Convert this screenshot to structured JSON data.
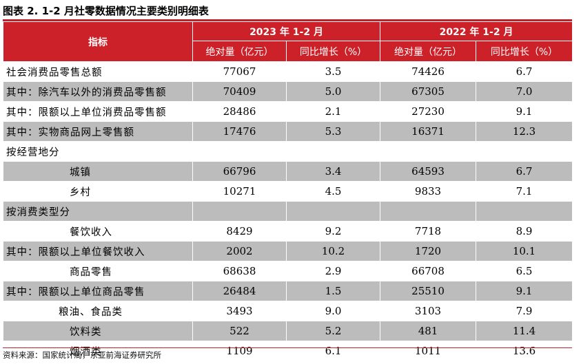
{
  "title": "图表 2.   1-2 月社零数据情况主要类别明细表",
  "header": {
    "indicator": "指标",
    "period_2023": "2023 年 1-2 月",
    "period_2022": "2022 年 1-2 月",
    "abs_2023": "绝对量（亿元）",
    "yoy_2023": "同比增长（%）",
    "abs_2022": "绝对量（亿元）",
    "yoy_2022": "同比增长（%）"
  },
  "rows": [
    {
      "label": "社会消费品零售总额",
      "a23": "77067",
      "y23": "3.5",
      "a22": "74426",
      "y22": "6.7"
    },
    {
      "label": "其中：除汽车以外的消费品零售额",
      "a23": "70409",
      "y23": "5.0",
      "a22": "67305",
      "y22": "7.0"
    },
    {
      "label": "其中：限额以上单位消费品零售额",
      "a23": "28486",
      "y23": "2.1",
      "a22": "27230",
      "y22": "9.1"
    },
    {
      "label": "其中：实物商品网上零售额",
      "a23": "17476",
      "y23": "5.3",
      "a22": "16371",
      "y22": "12.3"
    },
    {
      "label": "按经营地分",
      "a23": "",
      "y23": "",
      "a22": "",
      "y22": ""
    },
    {
      "label": "城镇",
      "a23": "66796",
      "y23": "3.4",
      "a22": "64593",
      "y22": "6.7"
    },
    {
      "label": "乡村",
      "a23": "10271",
      "y23": "4.5",
      "a22": "9833",
      "y22": "7.1"
    },
    {
      "label": "按消费类型分",
      "a23": "",
      "y23": "",
      "a22": "",
      "y22": ""
    },
    {
      "label": "餐饮收入",
      "a23": "8429",
      "y23": "9.2",
      "a22": "7718",
      "y22": "8.9"
    },
    {
      "label": "其中：限额以上单位餐饮收入",
      "a23": "2002",
      "y23": "10.2",
      "a22": "1720",
      "y22": "10.1"
    },
    {
      "label": "商品零售",
      "a23": "68638",
      "y23": "2.9",
      "a22": "66708",
      "y22": "6.5"
    },
    {
      "label": "其中：限额以上单位商品零售",
      "a23": "26484",
      "y23": "1.5",
      "a22": "25510",
      "y22": "9.1"
    },
    {
      "label": "粮油、食品类",
      "a23": "3493",
      "y23": "9.0",
      "a22": "3103",
      "y22": "7.9"
    },
    {
      "label": "饮料类",
      "a23": "522",
      "y23": "5.2",
      "a22": "481",
      "y22": "11.4"
    },
    {
      "label": "烟酒类",
      "a23": "1109",
      "y23": "6.1",
      "a22": "1011",
      "y22": "13.6"
    }
  ],
  "source": "资料来源：国家统计局，东亚前海证券研究所",
  "colors": {
    "header_bg": "#cc2128",
    "stripe_gray": "#bcbcbc"
  }
}
